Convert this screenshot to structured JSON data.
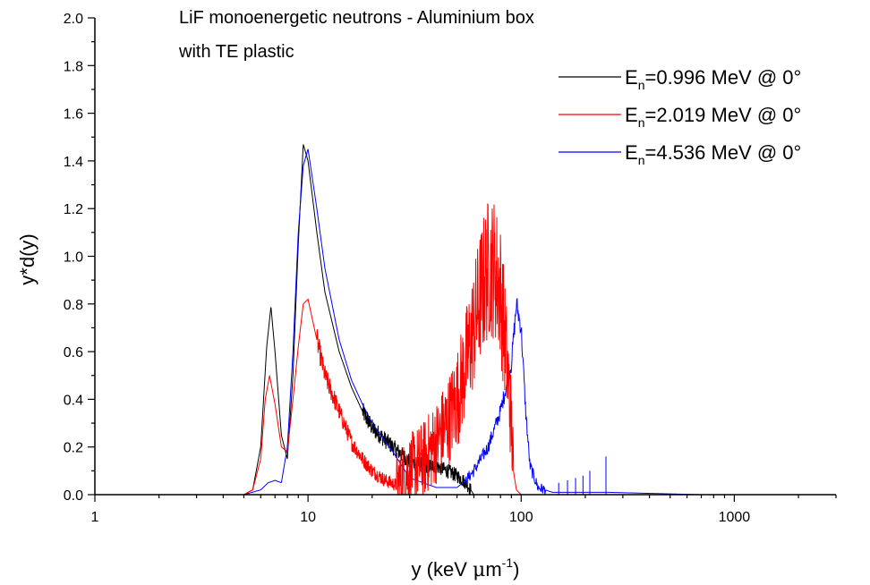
{
  "chart_data": {
    "type": "line",
    "title_lines": [
      "LiF monoenergetic neutrons - Aluminium box",
      "with TE plastic"
    ],
    "xlabel": {
      "prefix": "y (keV ",
      "mu": "μ",
      "m": "m",
      "exp": "-1",
      "suffix": ")"
    },
    "ylabel": "y*d(y)",
    "x_scale": "log",
    "xlim": [
      1,
      3000
    ],
    "ylim": [
      0,
      2.0
    ],
    "x_ticks": [
      1,
      10,
      100,
      1000
    ],
    "x_tick_labels": [
      "1",
      "10",
      "100",
      "1000"
    ],
    "y_ticks": [
      0.0,
      0.2,
      0.4,
      0.6,
      0.8,
      1.0,
      1.2,
      1.4,
      1.6,
      1.8,
      2.0
    ],
    "y_tick_labels": [
      "0.0",
      "0.2",
      "0.4",
      "0.6",
      "0.8",
      "1.0",
      "1.2",
      "1.4",
      "1.6",
      "1.8",
      "2.0"
    ],
    "grid": false,
    "legend_position": "top-right",
    "series": [
      {
        "name": "En=0.996 MeV @ 0°",
        "legend": {
          "base": "E",
          "sub": "n",
          "rest": "=0.996 MeV @ 0°"
        },
        "color": "#000000",
        "x": [
          1,
          5.0,
          5.5,
          6.0,
          6.4,
          6.7,
          7.0,
          7.5,
          8.0,
          8.5,
          9.0,
          9.5,
          10.0,
          11.0,
          12.0,
          14.0,
          16.0,
          18.0,
          20.0,
          25.0,
          30.0,
          35.0,
          40.0,
          45.0,
          50.0,
          55.0,
          58.0,
          60.0
        ],
        "y": [
          0,
          0,
          0.02,
          0.2,
          0.62,
          0.79,
          0.6,
          0.25,
          0.15,
          0.5,
          1.05,
          1.47,
          1.4,
          1.1,
          0.85,
          0.6,
          0.45,
          0.35,
          0.28,
          0.2,
          0.14,
          0.12,
          0.12,
          0.1,
          0.08,
          0.05,
          0.02,
          0
        ],
        "noise": [
          [
            18,
            58,
            0.06
          ]
        ]
      },
      {
        "name": "En=2.019 MeV @ 0°",
        "legend": {
          "base": "E",
          "sub": "n",
          "rest": "=2.019 MeV @ 0°"
        },
        "color": "#ff0000",
        "x": [
          1,
          5.0,
          5.5,
          6.0,
          6.3,
          6.6,
          7.0,
          7.5,
          8.0,
          8.5,
          9.0,
          9.5,
          10.0,
          11.0,
          12.0,
          14.0,
          16.0,
          18.0,
          20.0,
          23.0,
          26.0,
          30.0,
          35.0,
          40.0,
          45.0,
          50.0,
          55.0,
          60.0,
          65.0,
          70.0,
          75.0,
          80.0,
          85.0,
          90.0,
          92.0,
          95.0,
          100.0
        ],
        "y": [
          0,
          0,
          0.02,
          0.15,
          0.4,
          0.5,
          0.38,
          0.2,
          0.18,
          0.4,
          0.62,
          0.8,
          0.82,
          0.65,
          0.5,
          0.35,
          0.22,
          0.15,
          0.1,
          0.06,
          0.04,
          0.1,
          0.15,
          0.22,
          0.3,
          0.4,
          0.55,
          0.7,
          0.85,
          0.95,
          0.95,
          0.85,
          0.6,
          0.3,
          0.1,
          0.02,
          0
        ],
        "noise": [
          [
            11,
            26,
            0.06
          ],
          [
            26,
            92,
            0.3
          ]
        ]
      },
      {
        "name": "En=4.536 MeV @ 0°",
        "legend": {
          "base": "E",
          "sub": "n",
          "rest": "=4.536 MeV @ 0°"
        },
        "color": "#0000ff",
        "x": [
          1,
          5.0,
          6.0,
          6.5,
          7.0,
          7.5,
          8.0,
          8.5,
          9.0,
          9.5,
          10.0,
          11.0,
          12.0,
          14.0,
          16.0,
          18.0,
          20.0,
          25.0,
          30.0,
          40.0,
          50.0,
          55.0,
          60.0,
          70.0,
          80.0,
          90.0,
          95.0,
          100.0,
          105.0,
          110.0,
          120.0,
          140.0,
          170.0,
          250.0,
          700.0
        ],
        "y": [
          0,
          0,
          0.02,
          0.05,
          0.06,
          0.05,
          0.2,
          0.6,
          1.1,
          1.38,
          1.45,
          1.2,
          0.95,
          0.65,
          0.48,
          0.38,
          0.3,
          0.18,
          0.07,
          0.03,
          0.03,
          0.06,
          0.1,
          0.2,
          0.35,
          0.55,
          0.8,
          0.7,
          0.35,
          0.12,
          0.03,
          0.01,
          0.01,
          0.01,
          0
        ],
        "noise": [
          [
            55,
            130,
            0.05
          ]
        ],
        "spikes": [
          [
            150,
            0.05
          ],
          [
            165,
            0.06
          ],
          [
            180,
            0.07
          ],
          [
            195,
            0.08
          ],
          [
            210,
            0.1
          ],
          [
            250,
            0.16
          ]
        ]
      }
    ]
  }
}
